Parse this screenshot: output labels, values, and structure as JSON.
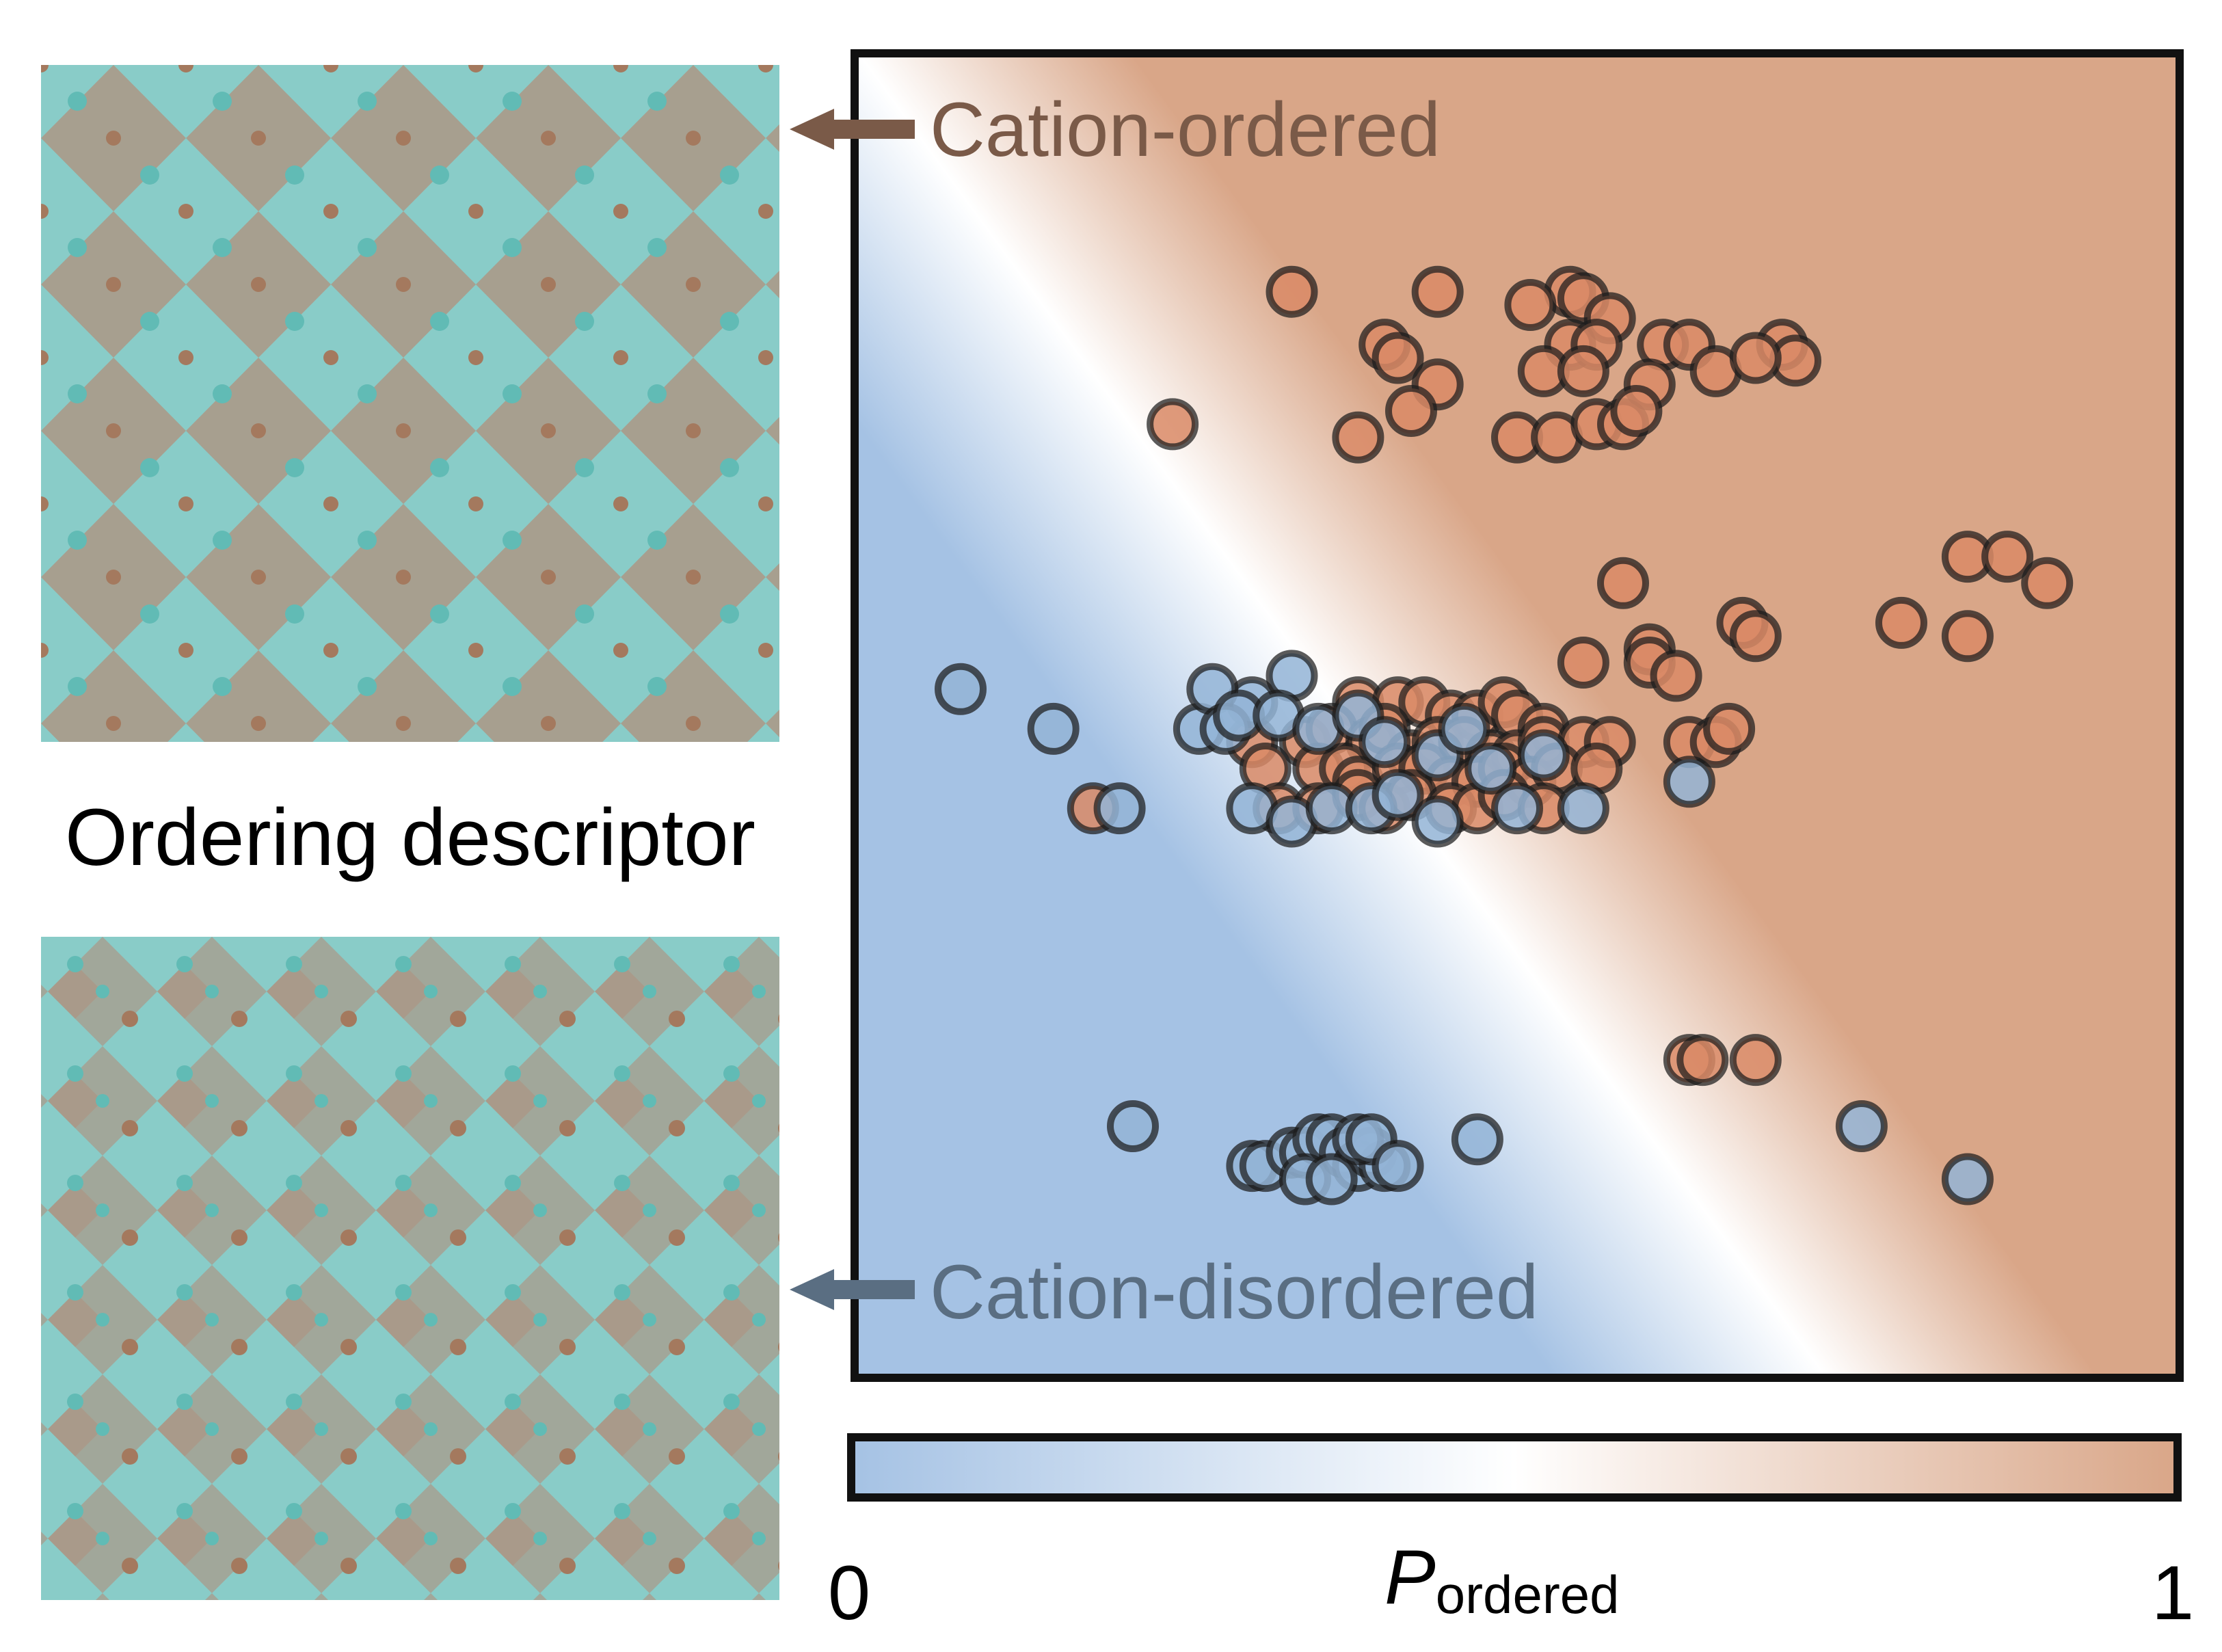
{
  "labels": {
    "ordering_descriptor": "Ordering descriptor",
    "cation_ordered": "Cation-ordered",
    "cation_disordered": "Cation-disordered",
    "colorbar_min": "0",
    "colorbar_max": "1",
    "colorbar_label_main": "P",
    "colorbar_label_sub": "ordered"
  },
  "colors": {
    "ordered": "#d9a688",
    "disordered": "#a5c2e4",
    "ordered_point": "#d98a66",
    "disordered_point": "#93b4d6",
    "arrow_ordered": "#7a5a48",
    "arrow_disordered": "#5a6e82",
    "teal": "#7cc6c2",
    "brown": "#a8826c"
  },
  "chart_data": {
    "type": "scatter",
    "title": "",
    "xlabel": "",
    "ylabel": "",
    "xlim": [
      0,
      100
    ],
    "ylim": [
      0,
      100
    ],
    "colorbar": {
      "label": "P_ordered",
      "range": [
        0,
        1
      ]
    },
    "series": [
      {
        "name": "Cation-ordered",
        "points": [
          [
            33,
            82
          ],
          [
            44,
            82
          ],
          [
            54,
            82
          ],
          [
            55,
            81.5
          ],
          [
            51,
            81
          ],
          [
            57,
            80
          ],
          [
            40,
            78
          ],
          [
            54,
            78
          ],
          [
            56,
            78
          ],
          [
            61,
            78
          ],
          [
            63,
            78
          ],
          [
            70,
            78
          ],
          [
            71,
            76.8
          ],
          [
            41,
            77
          ],
          [
            44,
            75
          ],
          [
            52,
            76
          ],
          [
            55,
            76
          ],
          [
            60,
            75
          ],
          [
            65,
            76
          ],
          [
            68,
            77
          ],
          [
            42,
            73
          ],
          [
            24,
            72
          ],
          [
            38,
            71
          ],
          [
            50,
            71
          ],
          [
            53,
            71
          ],
          [
            56,
            72
          ],
          [
            58,
            72
          ],
          [
            59,
            73
          ],
          [
            58,
            60
          ],
          [
            84,
            62
          ],
          [
            87,
            62
          ],
          [
            90,
            60
          ],
          [
            67,
            57
          ],
          [
            68,
            56
          ],
          [
            60,
            55
          ],
          [
            55,
            54
          ],
          [
            60,
            54
          ],
          [
            62,
            53
          ],
          [
            79,
            57
          ],
          [
            84,
            56
          ],
          [
            38,
            51
          ],
          [
            41,
            51
          ],
          [
            43,
            51
          ],
          [
            45,
            50
          ],
          [
            47,
            50
          ],
          [
            49,
            51
          ],
          [
            50,
            50
          ],
          [
            52,
            49
          ],
          [
            30,
            48
          ],
          [
            34,
            48
          ],
          [
            36,
            49
          ],
          [
            39,
            48
          ],
          [
            40,
            49
          ],
          [
            42,
            47
          ],
          [
            44,
            48
          ],
          [
            46,
            48
          ],
          [
            48,
            47
          ],
          [
            50,
            47
          ],
          [
            52,
            48
          ],
          [
            55,
            48
          ],
          [
            57,
            48
          ],
          [
            63,
            48
          ],
          [
            65,
            48
          ],
          [
            66,
            49
          ],
          [
            31,
            46
          ],
          [
            35,
            46
          ],
          [
            37,
            46
          ],
          [
            38,
            45
          ],
          [
            41,
            46
          ],
          [
            43,
            46
          ],
          [
            45,
            45
          ],
          [
            47,
            45
          ],
          [
            49,
            46
          ],
          [
            51,
            45
          ],
          [
            53,
            46
          ],
          [
            56,
            46
          ],
          [
            18,
            43
          ],
          [
            32,
            43
          ],
          [
            35,
            43
          ],
          [
            38,
            44
          ],
          [
            40,
            43
          ],
          [
            42,
            44
          ],
          [
            45,
            43
          ],
          [
            47,
            43
          ],
          [
            49,
            44
          ],
          [
            52,
            43
          ],
          [
            63,
            24
          ],
          [
            64,
            24
          ],
          [
            68,
            24
          ]
        ]
      },
      {
        "name": "Cation-disordered",
        "points": [
          [
            8,
            52
          ],
          [
            15,
            49
          ],
          [
            26,
            49
          ],
          [
            30,
            51
          ],
          [
            33,
            53
          ],
          [
            27,
            52
          ],
          [
            28,
            49
          ],
          [
            29,
            50
          ],
          [
            32,
            50
          ],
          [
            35,
            49
          ],
          [
            38,
            50
          ],
          [
            40,
            48
          ],
          [
            44,
            47
          ],
          [
            46,
            49
          ],
          [
            48,
            46
          ],
          [
            52,
            47
          ],
          [
            20,
            43
          ],
          [
            30,
            43
          ],
          [
            33,
            42
          ],
          [
            36,
            43
          ],
          [
            39,
            43
          ],
          [
            41,
            44
          ],
          [
            44,
            42
          ],
          [
            50,
            43
          ],
          [
            55,
            43
          ],
          [
            63,
            45
          ],
          [
            21,
            19
          ],
          [
            30,
            16
          ],
          [
            31,
            16
          ],
          [
            33,
            17
          ],
          [
            34,
            17
          ],
          [
            35,
            18
          ],
          [
            36,
            18
          ],
          [
            37,
            17
          ],
          [
            38,
            16
          ],
          [
            39,
            17
          ],
          [
            40,
            16
          ],
          [
            34,
            15
          ],
          [
            36,
            15
          ],
          [
            38,
            18
          ],
          [
            39,
            18
          ],
          [
            41,
            16
          ],
          [
            47,
            18
          ],
          [
            76,
            19
          ],
          [
            84,
            15
          ]
        ]
      }
    ]
  }
}
